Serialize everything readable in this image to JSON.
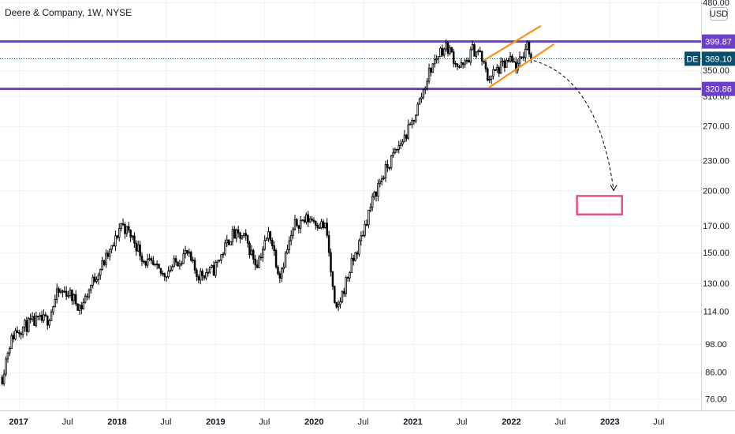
{
  "header": {
    "title": "Deere & Company, 1W, NYSE"
  },
  "price_axis": {
    "currency": "USD"
  },
  "colors": {
    "up": "#ffffff",
    "down": "#000000",
    "wick": "#000000",
    "level": "#6b3fc6",
    "channel": "#f7931a",
    "target_box": "#e6508c",
    "price_tag": "#0b4f6c",
    "projection": "#000000"
  },
  "chart_data": {
    "type": "candlestick",
    "title": "Deere & Company, 1W, NYSE",
    "scale": "log",
    "ylim": [
      72,
      485
    ],
    "xlim": [
      "2016-10-24",
      "2023-12-05"
    ],
    "y_ticks": [
      76,
      86,
      98,
      114,
      130,
      150,
      170,
      200,
      230,
      270,
      310,
      350,
      400,
      480
    ],
    "y_tick_labels": [
      "76.00",
      "86.00",
      "98.00",
      "114.00",
      "130.00",
      "150.00",
      "170.00",
      "200.00",
      "230.00",
      "270.00",
      "310.00",
      "350.00",
      "400.00",
      "480.00"
    ],
    "x_ticks": [
      {
        "date": "2017-01-01",
        "label": "2017",
        "year": true
      },
      {
        "date": "2017-07-01",
        "label": "Jul",
        "year": false
      },
      {
        "date": "2018-01-01",
        "label": "2018",
        "year": true
      },
      {
        "date": "2018-07-01",
        "label": "Jul",
        "year": false
      },
      {
        "date": "2019-01-01",
        "label": "2019",
        "year": true
      },
      {
        "date": "2019-07-01",
        "label": "Jul",
        "year": false
      },
      {
        "date": "2020-01-01",
        "label": "2020",
        "year": true
      },
      {
        "date": "2020-07-01",
        "label": "Jul",
        "year": false
      },
      {
        "date": "2021-01-01",
        "label": "2021",
        "year": true
      },
      {
        "date": "2021-07-01",
        "label": "Jul",
        "year": false
      },
      {
        "date": "2022-01-01",
        "label": "2022",
        "year": true
      },
      {
        "date": "2022-07-01",
        "label": "Jul",
        "year": false
      },
      {
        "date": "2023-01-01",
        "label": "2023",
        "year": true
      },
      {
        "date": "2023-07-01",
        "label": "Jul",
        "year": false
      }
    ],
    "price_path": [
      [
        "2016-11-01",
        84
      ],
      [
        "2016-11-25",
        97
      ],
      [
        "2016-12-20",
        104
      ],
      [
        "2017-02-15",
        108
      ],
      [
        "2017-04-20",
        110
      ],
      [
        "2017-05-25",
        124
      ],
      [
        "2017-07-01",
        125
      ],
      [
        "2017-08-20",
        116
      ],
      [
        "2017-10-05",
        132
      ],
      [
        "2017-12-20",
        155
      ],
      [
        "2018-01-15",
        172
      ],
      [
        "2018-03-01",
        160
      ],
      [
        "2018-04-10",
        145
      ],
      [
        "2018-06-20",
        135
      ],
      [
        "2018-08-01",
        142
      ],
      [
        "2018-09-15",
        150
      ],
      [
        "2018-10-25",
        135
      ],
      [
        "2018-12-24",
        138
      ],
      [
        "2019-03-01",
        163
      ],
      [
        "2019-04-20",
        160
      ],
      [
        "2019-06-01",
        142
      ],
      [
        "2019-07-20",
        165
      ],
      [
        "2019-08-25",
        135
      ],
      [
        "2019-10-25",
        172
      ],
      [
        "2019-12-20",
        176
      ],
      [
        "2020-02-15",
        168
      ],
      [
        "2020-03-20",
        112
      ],
      [
        "2020-05-15",
        140
      ],
      [
        "2020-06-15",
        155
      ],
      [
        "2020-07-20",
        180
      ],
      [
        "2020-08-25",
        205
      ],
      [
        "2020-10-20",
        235
      ],
      [
        "2020-12-25",
        270
      ],
      [
        "2021-02-10",
        320
      ],
      [
        "2021-03-05",
        350
      ],
      [
        "2021-04-15",
        385
      ],
      [
        "2021-05-10",
        390
      ],
      [
        "2021-06-20",
        355
      ],
      [
        "2021-07-10",
        356
      ],
      [
        "2021-08-10",
        385
      ],
      [
        "2021-09-05",
        380
      ],
      [
        "2021-10-05",
        338
      ],
      [
        "2021-11-10",
        350
      ],
      [
        "2021-12-25",
        365
      ],
      [
        "2022-01-25",
        355
      ],
      [
        "2022-03-01",
        395
      ],
      [
        "2022-03-20",
        369.1
      ]
    ],
    "levels": [
      {
        "name": "resistance",
        "value": 399.87,
        "label": "399.87"
      },
      {
        "name": "support",
        "value": 320.86,
        "label": "320.86"
      }
    ],
    "last_price": {
      "symbol": "DE",
      "value": 369.1,
      "label": "369.10"
    },
    "channel": {
      "upper": [
        [
          "2021-09-20",
          366
        ],
        [
          "2022-04-20",
          430
        ]
      ],
      "lower": [
        [
          "2021-10-10",
          323
        ],
        [
          "2022-06-08",
          395
        ]
      ]
    },
    "projection": {
      "from": [
        "2022-03-25",
        366
      ],
      "control": [
        "2022-11-20",
        335
      ],
      "to": [
        "2023-01-15",
        200
      ]
    },
    "target_zone": {
      "x0": "2022-09-01",
      "x1": "2023-02-15",
      "y0": 179,
      "y1": 195
    }
  }
}
